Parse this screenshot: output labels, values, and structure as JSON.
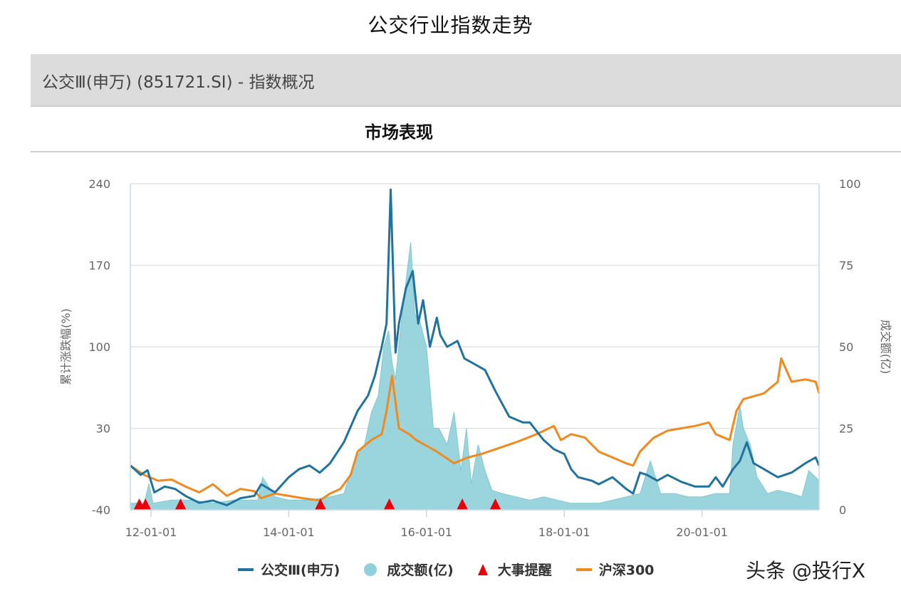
{
  "page_title": "公交行业指数走势",
  "panel_header": "公交Ⅲ(申万) (851721.SI) - 指数概况",
  "section_title": "市场表现",
  "watermark": "头条 @投行X",
  "colors": {
    "index_line": "#21729f",
    "hs300_line": "#f08a1f",
    "volume_area": "#8fd0da",
    "event_marker": "#e8000b",
    "grid": "#e3e3e3",
    "axis": "#c9d7e3"
  },
  "legend": [
    {
      "label": "公交Ⅲ(申万)",
      "icon": "line-swatch",
      "color": "#21729f"
    },
    {
      "label": "成交额(亿)",
      "icon": "circle-swatch",
      "color": "#8fd0da"
    },
    {
      "label": "大事提醒",
      "icon": "triangle-swatch",
      "color": "#e8000b"
    },
    {
      "label": "沪深300",
      "icon": "line-swatch",
      "color": "#f08a1f"
    }
  ],
  "chart_data": {
    "type": "line",
    "title": "市场表现",
    "xlabel": "",
    "ylabel": "累计涨跌幅(%)",
    "ylabel_right": "成交额(亿)",
    "ylim": [
      -40,
      240
    ],
    "ylim_right": [
      0,
      100
    ],
    "yticks": [
      -40,
      30,
      100,
      170,
      240
    ],
    "yticks_right": [
      0,
      25,
      50,
      75,
      100
    ],
    "xtick_labels": [
      "12-01-01",
      "14-01-01",
      "16-01-01",
      "18-01-01",
      "20-01-01"
    ],
    "xtick_positions": [
      2012.0,
      2014.0,
      2016.0,
      2018.0,
      2020.0
    ],
    "xlim": [
      2011.7,
      2021.7
    ],
    "grid": true,
    "legend_position": "bottom",
    "series": [
      {
        "name": "公交Ⅲ(申万)",
        "type": "line",
        "axis": "left",
        "x": [
          2011.7,
          2011.85,
          2011.95,
          2012.05,
          2012.2,
          2012.35,
          2012.5,
          2012.7,
          2012.9,
          2013.1,
          2013.3,
          2013.5,
          2013.6,
          2013.8,
          2014.0,
          2014.15,
          2014.3,
          2014.45,
          2014.6,
          2014.8,
          2015.0,
          2015.15,
          2015.25,
          2015.35,
          2015.42,
          2015.48,
          2015.55,
          2015.6,
          2015.7,
          2015.8,
          2015.88,
          2015.95,
          2016.05,
          2016.15,
          2016.2,
          2016.3,
          2016.45,
          2016.55,
          2016.7,
          2016.85,
          2017.0,
          2017.2,
          2017.4,
          2017.5,
          2017.7,
          2017.85,
          2018.0,
          2018.1,
          2018.2,
          2018.4,
          2018.5,
          2018.7,
          2018.9,
          2019.0,
          2019.1,
          2019.2,
          2019.35,
          2019.5,
          2019.7,
          2019.9,
          2020.1,
          2020.2,
          2020.3,
          2020.45,
          2020.55,
          2020.65,
          2020.75,
          2020.9,
          2021.1,
          2021.3,
          2021.5,
          2021.65,
          2021.7
        ],
        "values": [
          -2,
          -10,
          -6,
          -25,
          -20,
          -22,
          -28,
          -34,
          -32,
          -36,
          -30,
          -28,
          -18,
          -25,
          -12,
          -5,
          -2,
          -8,
          0,
          18,
          45,
          58,
          75,
          100,
          120,
          235,
          95,
          120,
          150,
          165,
          120,
          140,
          100,
          125,
          110,
          100,
          105,
          90,
          85,
          80,
          62,
          40,
          35,
          35,
          20,
          12,
          8,
          -5,
          -12,
          -15,
          -18,
          -12,
          -22,
          -26,
          -8,
          -10,
          -15,
          -10,
          -16,
          -20,
          -20,
          -12,
          -20,
          -5,
          2,
          18,
          0,
          -5,
          -12,
          -8,
          0,
          5,
          -2
        ]
      },
      {
        "name": "沪深300",
        "type": "line",
        "axis": "left",
        "x": [
          2011.7,
          2011.9,
          2012.1,
          2012.3,
          2012.5,
          2012.7,
          2012.9,
          2013.1,
          2013.3,
          2013.5,
          2013.6,
          2013.8,
          2014.0,
          2014.2,
          2014.45,
          2014.6,
          2014.75,
          2014.9,
          2015.0,
          2015.2,
          2015.35,
          2015.42,
          2015.5,
          2015.6,
          2015.75,
          2015.85,
          2016.0,
          2016.15,
          2016.4,
          2016.6,
          2016.8,
          2017.0,
          2017.3,
          2017.6,
          2017.85,
          2017.95,
          2018.1,
          2018.3,
          2018.5,
          2018.7,
          2018.9,
          2019.0,
          2019.1,
          2019.3,
          2019.5,
          2019.7,
          2019.9,
          2020.1,
          2020.2,
          2020.4,
          2020.5,
          2020.6,
          2020.9,
          2021.1,
          2021.15,
          2021.3,
          2021.5,
          2021.65,
          2021.7
        ],
        "values": [
          -2,
          -10,
          -15,
          -14,
          -20,
          -25,
          -18,
          -28,
          -22,
          -24,
          -30,
          -26,
          -28,
          -30,
          -32,
          -26,
          -22,
          -10,
          10,
          20,
          25,
          45,
          75,
          30,
          25,
          20,
          15,
          10,
          0,
          5,
          8,
          12,
          18,
          25,
          32,
          20,
          25,
          22,
          10,
          5,
          0,
          -2,
          10,
          22,
          28,
          30,
          32,
          35,
          25,
          20,
          45,
          55,
          60,
          70,
          90,
          70,
          72,
          70,
          60
        ]
      },
      {
        "name": "成交额(亿)",
        "type": "area",
        "axis": "right",
        "x": [
          2011.7,
          2011.9,
          2011.97,
          2012.03,
          2012.3,
          2012.6,
          2012.9,
          2013.2,
          2013.55,
          2013.62,
          2013.8,
          2014.0,
          2014.3,
          2014.6,
          2014.8,
          2014.95,
          2015.1,
          2015.2,
          2015.3,
          2015.38,
          2015.45,
          2015.5,
          2015.55,
          2015.62,
          2015.7,
          2015.77,
          2015.83,
          2015.9,
          2016.0,
          2016.1,
          2016.18,
          2016.3,
          2016.4,
          2016.5,
          2016.58,
          2016.65,
          2016.75,
          2016.85,
          2016.95,
          2017.1,
          2017.3,
          2017.5,
          2017.7,
          2017.9,
          2018.1,
          2018.3,
          2018.5,
          2018.7,
          2018.9,
          2019.1,
          2019.25,
          2019.4,
          2019.6,
          2019.8,
          2020.0,
          2020.2,
          2020.4,
          2020.45,
          2020.55,
          2020.6,
          2020.7,
          2020.8,
          2020.95,
          2021.1,
          2021.3,
          2021.45,
          2021.55,
          2021.65,
          2021.7
        ],
        "values": [
          2,
          2,
          8,
          2,
          3,
          3,
          2,
          3,
          3,
          10,
          4,
          3,
          3,
          4,
          5,
          15,
          20,
          30,
          35,
          50,
          55,
          45,
          40,
          55,
          70,
          82,
          60,
          58,
          50,
          25,
          25,
          20,
          30,
          12,
          25,
          8,
          20,
          12,
          6,
          5,
          4,
          3,
          4,
          3,
          2,
          2,
          2,
          3,
          4,
          5,
          15,
          5,
          5,
          4,
          4,
          5,
          5,
          20,
          32,
          25,
          20,
          10,
          5,
          6,
          5,
          4,
          12,
          10,
          9
        ]
      }
    ],
    "events": {
      "name": "大事提醒",
      "type": "marker-triangle",
      "x": [
        2011.83,
        2011.92,
        2012.43,
        2014.46,
        2015.46,
        2016.52,
        2017.0
      ]
    }
  }
}
